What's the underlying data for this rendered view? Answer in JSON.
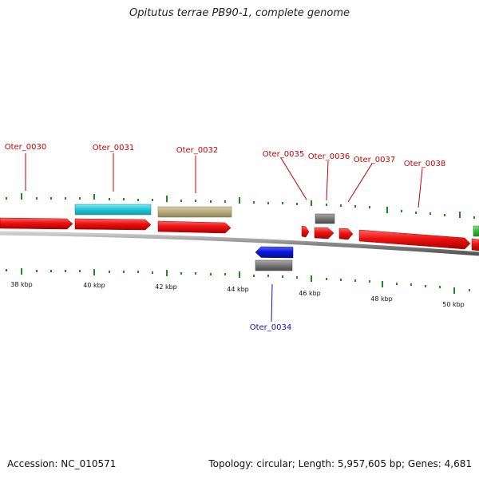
{
  "title": "Opitutus terrae PB90-1, complete genome",
  "footer": {
    "accession": "Accession: NC_010571",
    "summary": "Topology: circular; Length: 5,957,605 bp; Genes: 4,681"
  },
  "scale_labels": [
    "38 kbp",
    "40 kbp",
    "42 kbp",
    "44 kbp",
    "46 kbp",
    "48 kbp",
    "50 kbp"
  ],
  "gene_labels": {
    "g0030": "Oter_0030",
    "g0031": "Oter_0031",
    "g0032": "Oter_0032",
    "g0034": "Oter_0034",
    "g0035": "Oter_0035",
    "g0036": "Oter_0036",
    "g0037": "Oter_0037",
    "g0038": "Oter_0038"
  },
  "colors": {
    "forward_cds": "#ee1111",
    "reverse_cds": "#0a17e0",
    "cyan_feature": "#22c6d6",
    "khaki_feature": "#b5ab7c",
    "gray_feature": "#777777",
    "green_feature": "#33bb33",
    "tick": "#1f8a1f",
    "backbone": "#888888",
    "label_forward": "#cc0000",
    "label_reverse": "#1111bb"
  }
}
